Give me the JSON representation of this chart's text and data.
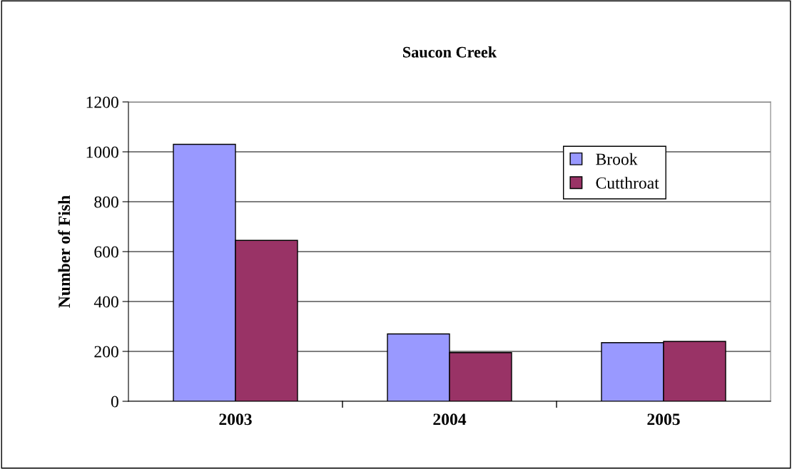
{
  "chart_data": {
    "type": "bar",
    "title": "Saucon Creek",
    "ylabel": "Number of Fish",
    "categories": [
      "2003",
      "2004",
      "2005"
    ],
    "series": [
      {
        "name": "Brook",
        "color": "#9999ff",
        "values": [
          1030,
          270,
          235
        ]
      },
      {
        "name": "Cutthroat",
        "color": "#993366",
        "values": [
          645,
          195,
          240
        ]
      }
    ],
    "ylim": [
      0,
      1200
    ],
    "yticks": [
      0,
      200,
      400,
      600,
      800,
      1000,
      1200
    ],
    "grid": "y",
    "legend": "top right"
  }
}
